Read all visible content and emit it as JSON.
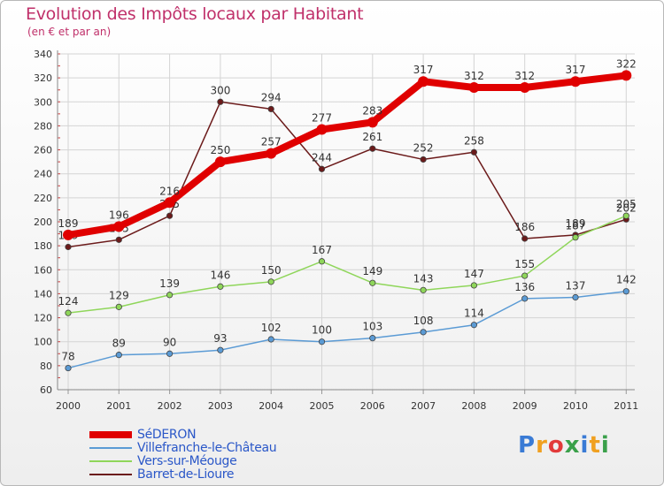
{
  "chart_data": {
    "type": "line",
    "title": "Evolution des Impôts locaux par Habitant",
    "subtitle": "(en € et par an)",
    "categories": [
      "2000",
      "2001",
      "2002",
      "2003",
      "2004",
      "2005",
      "2006",
      "2007",
      "2008",
      "2009",
      "2010",
      "2011"
    ],
    "ylim": [
      60,
      340
    ],
    "yticks": [
      "60",
      "80",
      "100",
      "120",
      "140",
      "160",
      "180",
      "200",
      "220",
      "240",
      "260",
      "280",
      "300",
      "320",
      "340"
    ],
    "grid": true,
    "legend_position": "bottom-left",
    "series": [
      {
        "name": "Barret-de-Lioure",
        "color": "#6b1a1a",
        "values": [
          179,
          185,
          205,
          300,
          294,
          244,
          261,
          252,
          258,
          186,
          189,
          202
        ]
      },
      {
        "name": "Villefranche-le-Château",
        "color": "#5b9bd5",
        "values": [
          78,
          89,
          90,
          93,
          102,
          100,
          103,
          108,
          114,
          136,
          137,
          142
        ]
      },
      {
        "name": "Vers-sur-Méouge",
        "color": "#8fd65a",
        "values": [
          124,
          129,
          139,
          146,
          150,
          167,
          149,
          143,
          147,
          155,
          187,
          205
        ]
      },
      {
        "name": "SéDERON",
        "color": "#e00000",
        "values": [
          189,
          196,
          216,
          250,
          257,
          277,
          283,
          317,
          312,
          312,
          317,
          322
        ]
      }
    ]
  },
  "legend": [
    {
      "label": "SéDERON",
      "color": "#e00000"
    },
    {
      "label": "Villefranche-le-Château",
      "color": "#5b9bd5"
    },
    {
      "label": "Vers-sur-Méouge",
      "color": "#8fd65a"
    },
    {
      "label": "Barret-de-Lioure",
      "color": "#6b1a1a"
    }
  ],
  "logo": {
    "letters": [
      "P",
      "r",
      "o",
      "x",
      "i",
      "t",
      "i"
    ],
    "colors": [
      "#3a7bd5",
      "#f0a020",
      "#e23a3a",
      "#3aa04a",
      "#3a7bd5",
      "#f0a020",
      "#3aa04a"
    ]
  }
}
